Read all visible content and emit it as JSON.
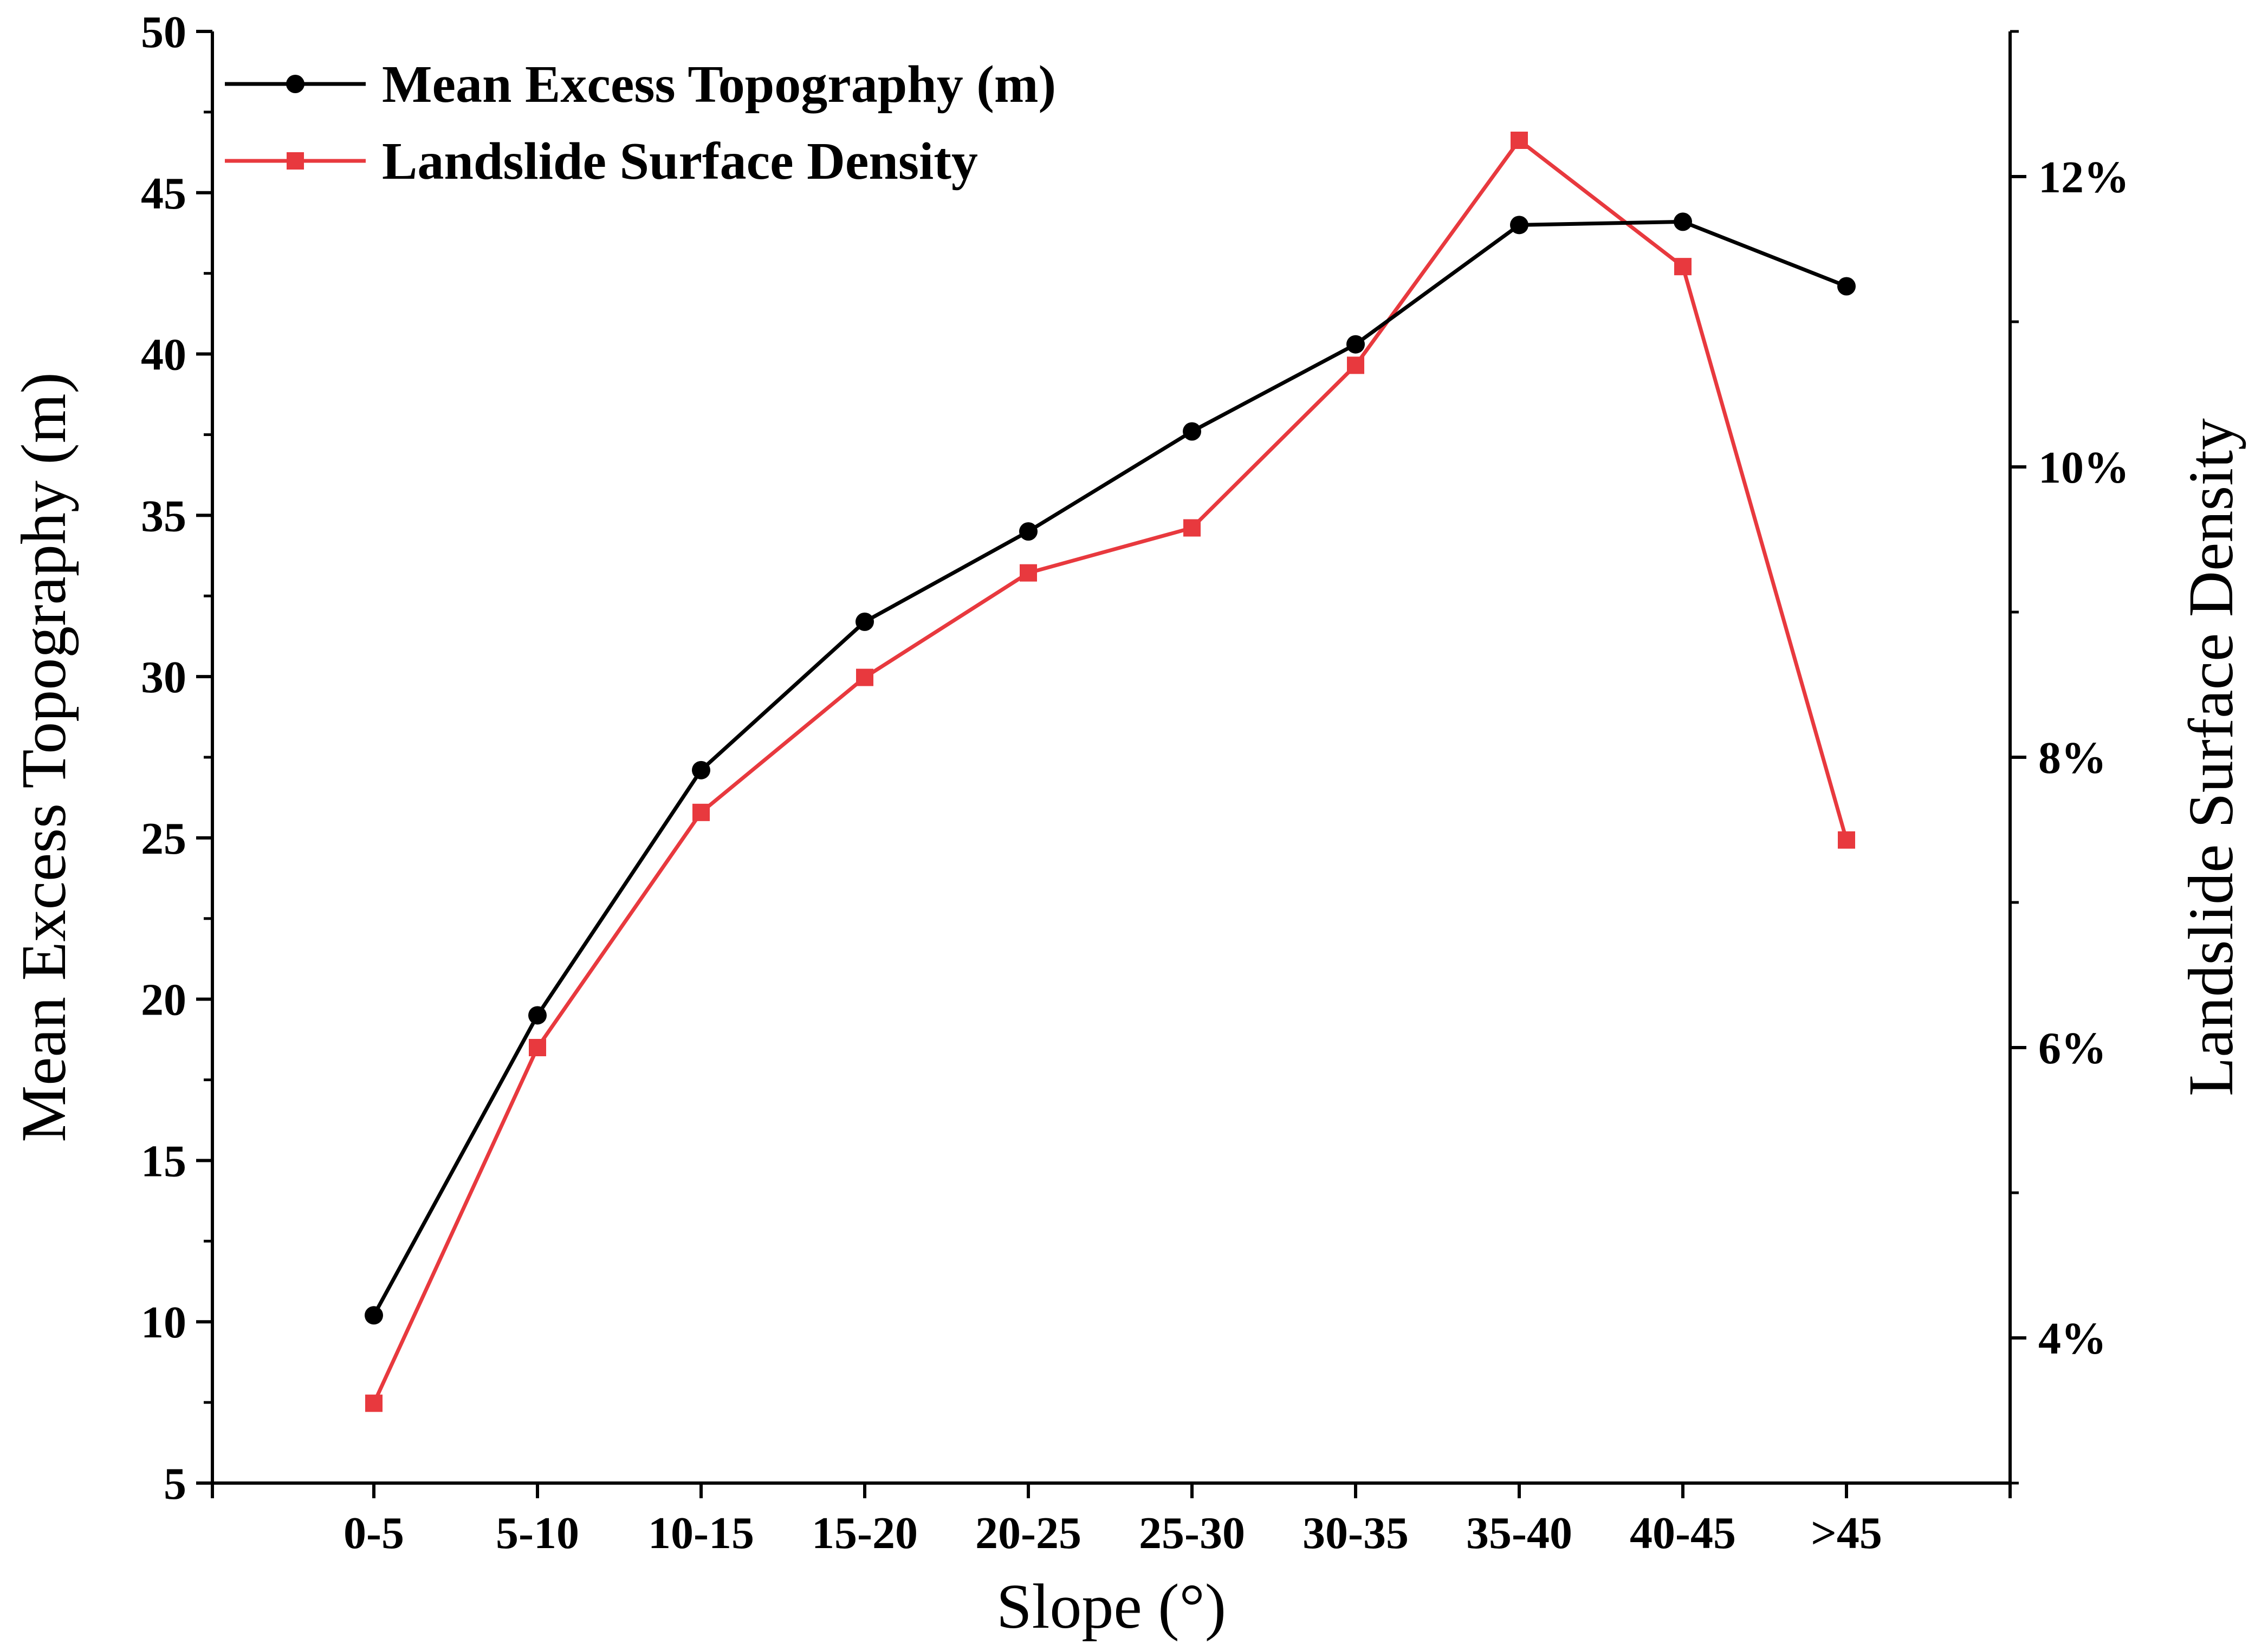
{
  "chart_data": {
    "type": "line",
    "categories": [
      "0-5",
      "5-10",
      "10-15",
      "15-20",
      "20-25",
      "25-30",
      "30-35",
      "35-40",
      "40-45",
      ">45"
    ],
    "series": [
      {
        "name": "Mean Excess Topography (m)",
        "axis": "left",
        "color": "#000000",
        "marker": "circle",
        "values": [
          10.2,
          19.5,
          27.1,
          31.7,
          34.5,
          37.6,
          40.3,
          44.0,
          44.1,
          42.1
        ]
      },
      {
        "name": "Landslide Surface Density",
        "axis": "right",
        "color": "#E8393E",
        "marker": "square",
        "values": [
          3.55,
          6.0,
          7.62,
          8.55,
          9.27,
          9.58,
          10.7,
          12.25,
          11.38,
          7.43
        ]
      }
    ],
    "xlabel": "Slope (°)",
    "ylabel": "Mean Excess Topography (m)",
    "y2label": "Landslide Surface Density",
    "ylim": [
      5,
      50
    ],
    "y2lim": [
      3,
      13
    ],
    "yticks": [
      5,
      10,
      15,
      20,
      25,
      30,
      35,
      40,
      45,
      50
    ],
    "y2ticks": [
      {
        "value": 4,
        "label": "4%"
      },
      {
        "value": 6,
        "label": "6%"
      },
      {
        "value": 8,
        "label": "8%"
      },
      {
        "value": 10,
        "label": "10%"
      },
      {
        "value": 12,
        "label": "12%"
      }
    ],
    "legend_position": "top-left",
    "grid": false
  }
}
